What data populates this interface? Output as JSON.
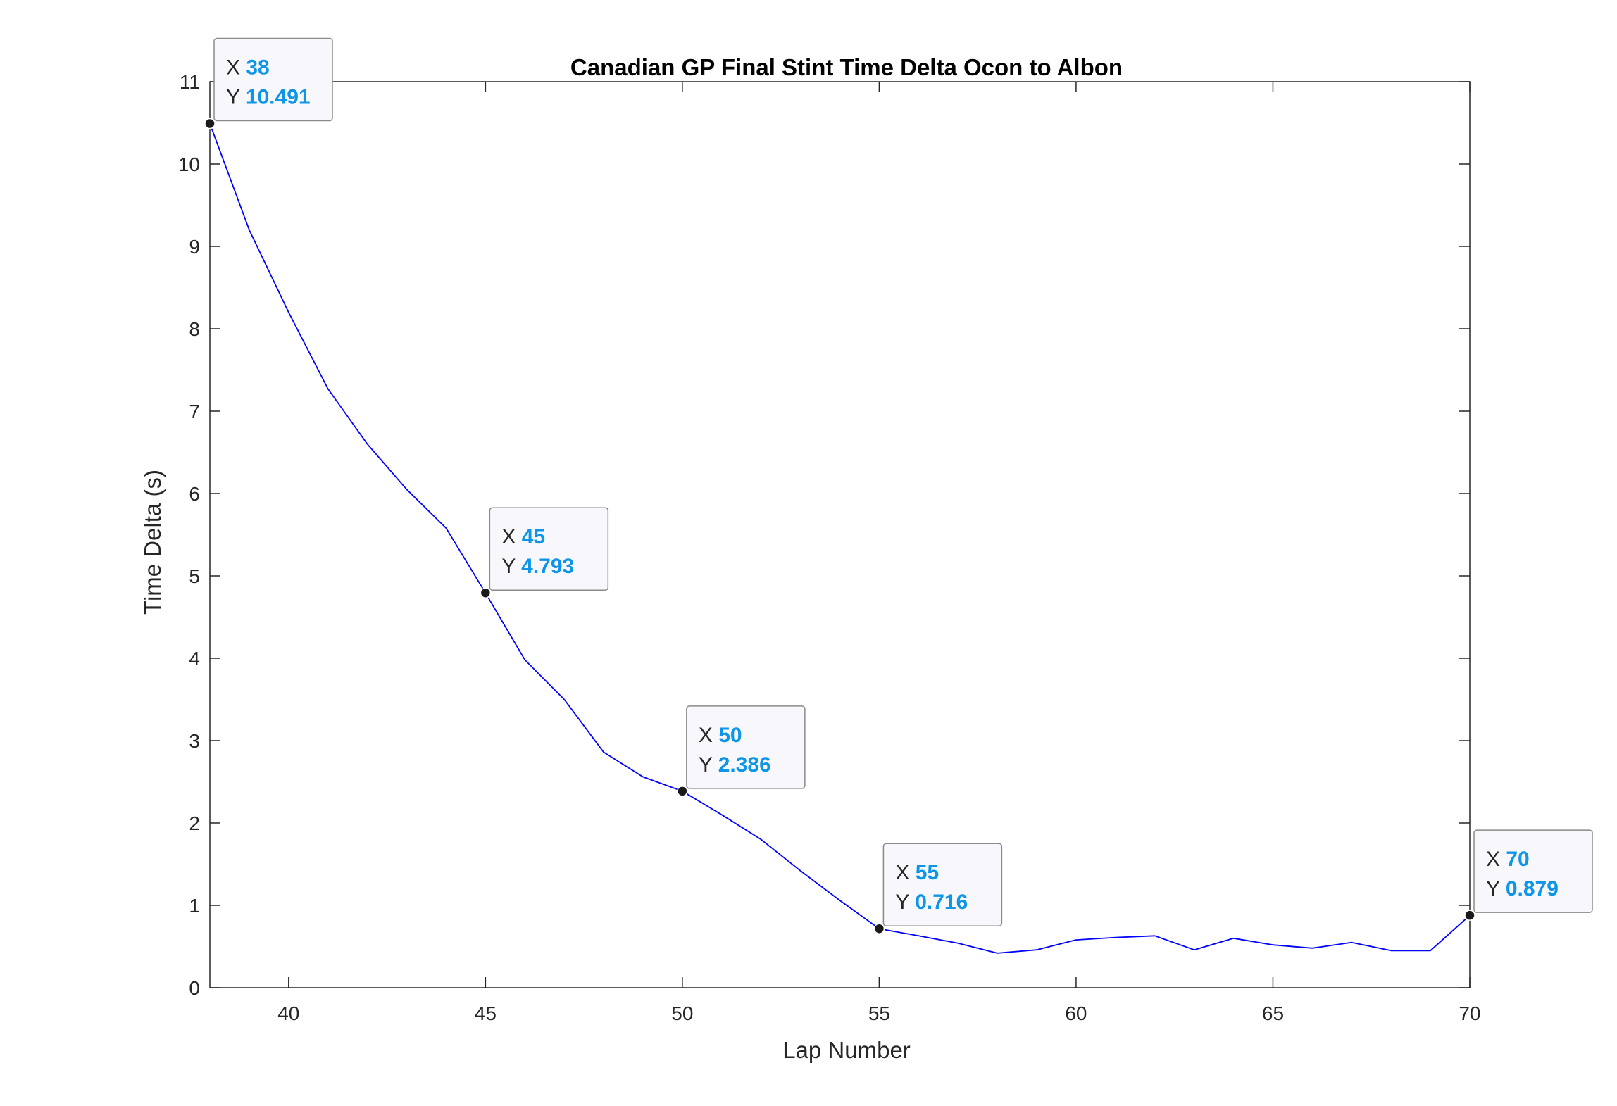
{
  "chart_data": {
    "type": "line",
    "title": "Canadian GP Final Stint Time Delta Ocon to Albon",
    "xlabel": "Lap Number",
    "ylabel": "Time Delta (s)",
    "xlim": [
      38,
      70
    ],
    "ylim": [
      0,
      11
    ],
    "xticks": [
      40,
      45,
      50,
      55,
      60,
      65,
      70
    ],
    "yticks": [
      0,
      1,
      2,
      3,
      4,
      5,
      6,
      7,
      8,
      9,
      10,
      11
    ],
    "grid": false,
    "series": [
      {
        "color": "#0000ff",
        "x": [
          38,
          39,
          40,
          41,
          42,
          43,
          44,
          45,
          46,
          47,
          48,
          49,
          50,
          51,
          52,
          53,
          54,
          55,
          56,
          57,
          58,
          59,
          60,
          61,
          62,
          63,
          64,
          65,
          66,
          67,
          68,
          69,
          70
        ],
        "y": [
          10.491,
          9.2,
          8.2,
          7.27,
          6.6,
          6.05,
          5.58,
          4.793,
          3.98,
          3.5,
          2.86,
          2.56,
          2.386,
          2.1,
          1.8,
          1.42,
          1.06,
          0.716,
          0.63,
          0.54,
          0.42,
          0.46,
          0.58,
          0.61,
          0.63,
          0.46,
          0.6,
          0.52,
          0.48,
          0.55,
          0.45,
          0.45,
          0.879
        ]
      }
    ],
    "datatips": [
      {
        "x_label": "X",
        "x": "38",
        "y_label": "Y",
        "y": "10.491"
      },
      {
        "x_label": "X",
        "x": "45",
        "y_label": "Y",
        "y": "4.793"
      },
      {
        "x_label": "X",
        "x": "50",
        "y_label": "Y",
        "y": "2.386"
      },
      {
        "x_label": "X",
        "x": "55",
        "y_label": "Y",
        "y": "0.716"
      },
      {
        "x_label": "X",
        "x": "70",
        "y_label": "Y",
        "y": "0.879"
      }
    ],
    "colors": {
      "line": "#0000ff",
      "datatip_value": "#0d95e8",
      "axes": "#262626",
      "marker": "#1a1a1a"
    }
  }
}
